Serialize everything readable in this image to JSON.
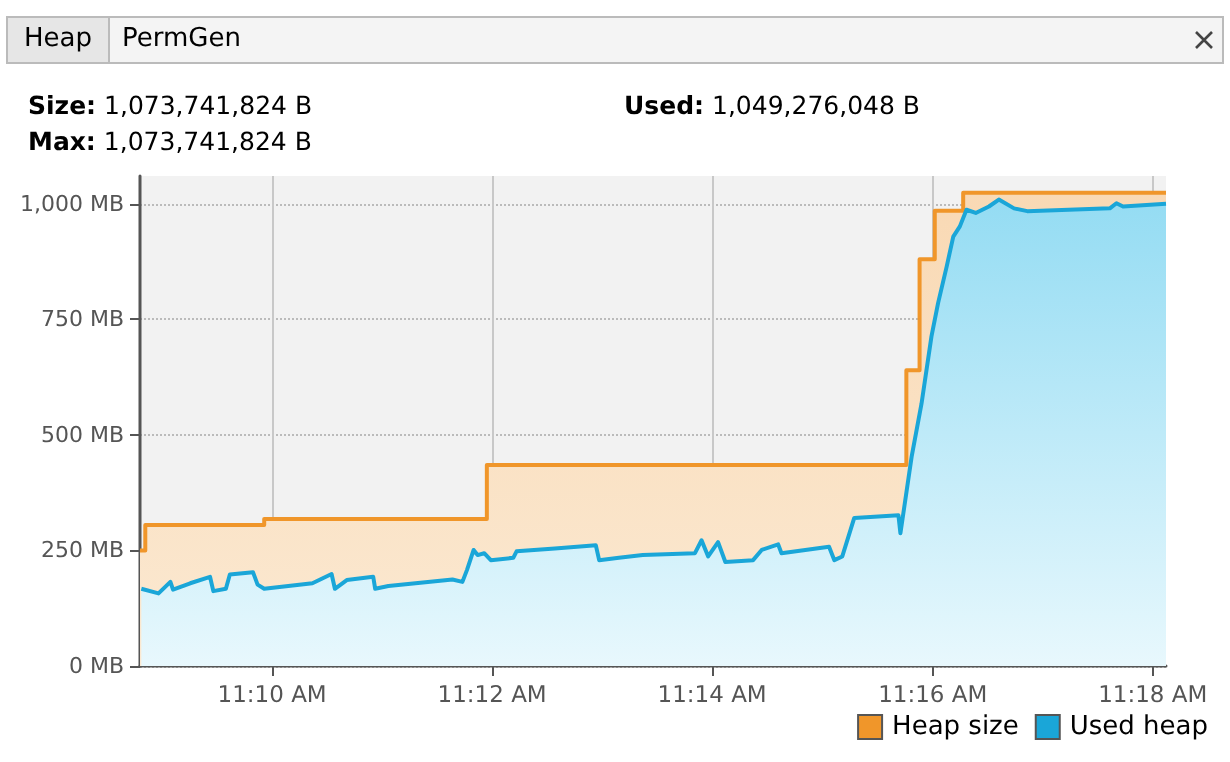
{
  "chart_data": {
    "type": "area",
    "annotations": [
      "Heap",
      "PermGen",
      "Size: 1,073,741,824 B",
      "Max: 1,073,741,824 B",
      "Used: 1,049,276,048 B"
    ],
    "xlim": [
      11.1467,
      11.302
    ],
    "xticks": [
      {
        "value": 11.1667,
        "label": "11:10 AM"
      },
      {
        "value": 11.2,
        "label": "11:12 AM"
      },
      {
        "value": 11.2333,
        "label": "11:14 AM"
      },
      {
        "value": 11.2667,
        "label": "11:16 AM"
      },
      {
        "value": 11.3,
        "label": "11:18 AM"
      }
    ],
    "ylim": [
      0,
      1060
    ],
    "yticks": [
      {
        "value": 0,
        "label": "0 MB"
      },
      {
        "value": 250,
        "label": "250 MB"
      },
      {
        "value": 500,
        "label": "500 MB"
      },
      {
        "value": 750,
        "label": "750 MB"
      },
      {
        "value": 1000,
        "label": "1,000 MB"
      }
    ],
    "grid": true,
    "legend": "bottom right",
    "marker": "none",
    "series": [
      {
        "name": "Heap size",
        "color": "#f0962a",
        "x": [
          11.1467,
          11.1475,
          11.1475,
          11.1655,
          11.1655,
          11.1992,
          11.1992,
          11.2627,
          11.2627,
          11.2647,
          11.2647,
          11.267,
          11.267,
          11.2713,
          11.2713,
          11.302
        ],
        "values": [
          250,
          250,
          305,
          305,
          318,
          318,
          435,
          435,
          640,
          640,
          880,
          880,
          985,
          985,
          1024,
          1024
        ]
      },
      {
        "name": "Used heap",
        "color": "#1aa6d8",
        "x": [
          11.1469,
          11.1495,
          11.1513,
          11.1517,
          11.1543,
          11.1573,
          11.1578,
          11.1597,
          11.1603,
          11.1638,
          11.1645,
          11.1655,
          11.1728,
          11.1757,
          11.1762,
          11.178,
          11.182,
          11.1823,
          11.1843,
          11.194,
          11.1955,
          11.1962,
          11.1972,
          11.1978,
          11.1988,
          11.1998,
          11.2032,
          11.2037,
          11.2095,
          11.2157,
          11.2162,
          11.2192,
          11.2228,
          11.2307,
          11.2317,
          11.2327,
          11.2342,
          11.2353,
          11.2395,
          11.2408,
          11.2433,
          11.2438,
          11.251,
          11.2518,
          11.253,
          11.2548,
          11.2615,
          11.2618,
          11.2635,
          11.265,
          11.2665,
          11.2675,
          11.2688,
          11.2698,
          11.2708,
          11.2718,
          11.2732,
          11.2752,
          11.2767,
          11.279,
          11.281,
          11.2935,
          11.2945,
          11.2955,
          11.302
        ],
        "values": [
          167,
          157,
          182,
          165,
          179,
          193,
          162,
          167,
          198,
          203,
          176,
          167,
          179,
          199,
          167,
          186,
          193,
          167,
          173,
          187,
          182,
          208,
          251,
          240,
          244,
          229,
          234,
          248,
          254,
          261,
          229,
          234,
          240,
          244,
          272,
          237,
          268,
          225,
          229,
          251,
          263,
          244,
          258,
          229,
          237,
          320,
          326,
          287,
          453,
          568,
          713,
          785,
          864,
          929,
          951,
          987,
          980,
          994,
          1009,
          990,
          984,
          990,
          1001,
          994,
          1000
        ]
      }
    ]
  }
}
